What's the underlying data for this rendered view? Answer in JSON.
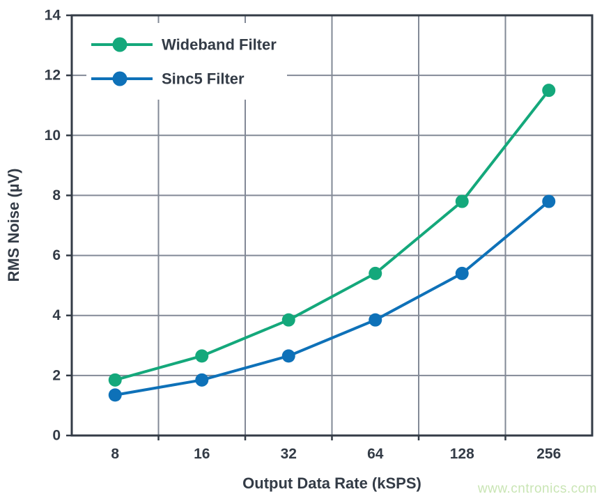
{
  "figure": {
    "watermark": "www.cntronics.com",
    "colors": {
      "background": "#ffffff",
      "frame": "#333b46",
      "grid": "#828996",
      "text": "#333b46",
      "watermark": "#c9e5b4",
      "wideband_green": "#14a87b",
      "sinc5_blue": "#0e71b8"
    }
  },
  "chart_data": {
    "type": "line",
    "categories": [
      "8",
      "16",
      "32",
      "64",
      "128",
      "256"
    ],
    "series": [
      {
        "name": "Wideband Filter",
        "color": "#14a87b",
        "values": [
          1.85,
          2.65,
          3.85,
          5.4,
          7.8,
          11.5
        ]
      },
      {
        "name": "Sinc5 Filter",
        "color": "#0e71b8",
        "values": [
          1.35,
          1.85,
          2.65,
          3.85,
          5.4,
          7.8
        ]
      }
    ],
    "title": "",
    "xlabel": "Output Data Rate (kSPS)",
    "ylabel": "RMS Noise (µV)",
    "ylim": [
      0,
      14
    ],
    "ytick_step": 2,
    "grid": true,
    "legend_position": "top-left"
  }
}
